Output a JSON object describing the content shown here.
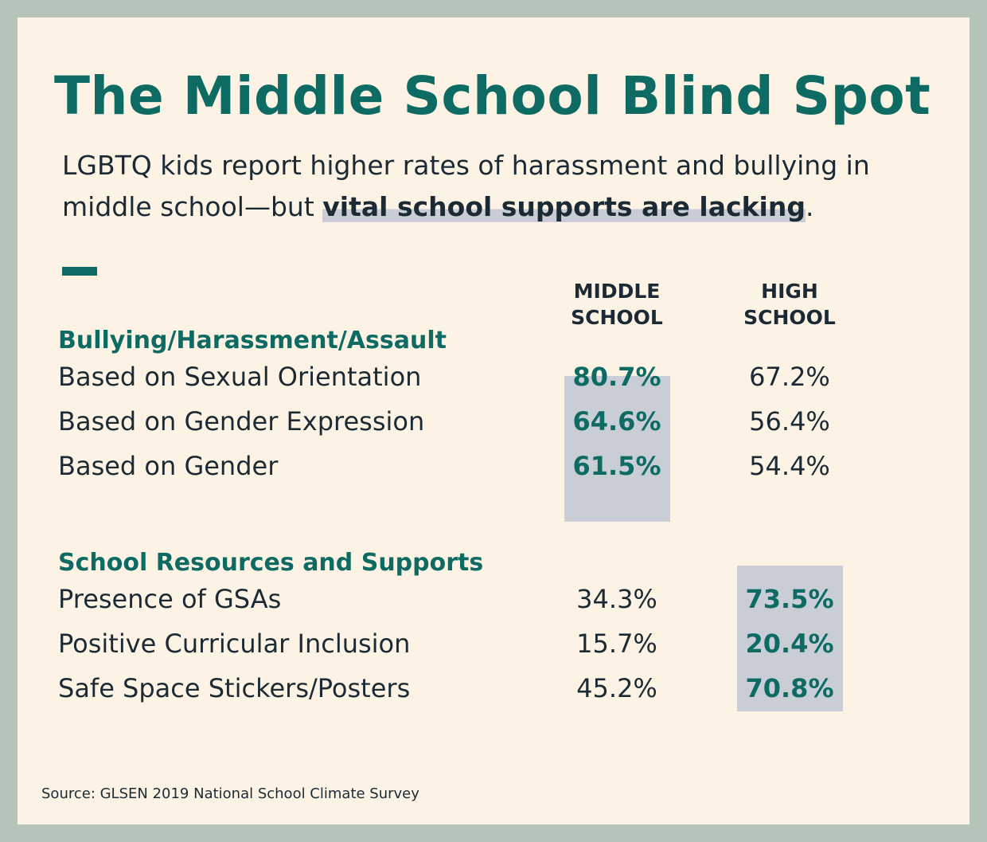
{
  "title": "The Middle School Blind Spot",
  "subtitle": {
    "text": "LGBTQ kids report higher rates of harassment and bullying in middle school—but",
    "highlight": "vital school supports are lacking",
    "end": "."
  },
  "columns": [
    "MIDDLE SCHOOL",
    "HIGH SCHOOL"
  ],
  "sections": [
    {
      "heading": "Bullying/Harassment/Assault",
      "highlight_column": 0,
      "rows": [
        [
          "Based on Sexual Orientation",
          "80.7%",
          "67.2%"
        ],
        [
          "Based on Gender Expression",
          "64.6%",
          "56.4%"
        ],
        [
          "Based on Gender",
          "61.5%",
          "54.4%"
        ]
      ]
    },
    {
      "heading": "School Resources and Supports",
      "highlight_column": 1,
      "rows": [
        [
          "Presence of GSAs",
          "34.3%",
          "73.5%"
        ],
        [
          "Positive Curricular Inclusion",
          "15.7%",
          "20.4%"
        ],
        [
          "Safe Space Stickers/Posters",
          "45.2%",
          "70.8%"
        ]
      ]
    }
  ],
  "source": "Source: GLSEN 2019 National School Climate Survey"
}
